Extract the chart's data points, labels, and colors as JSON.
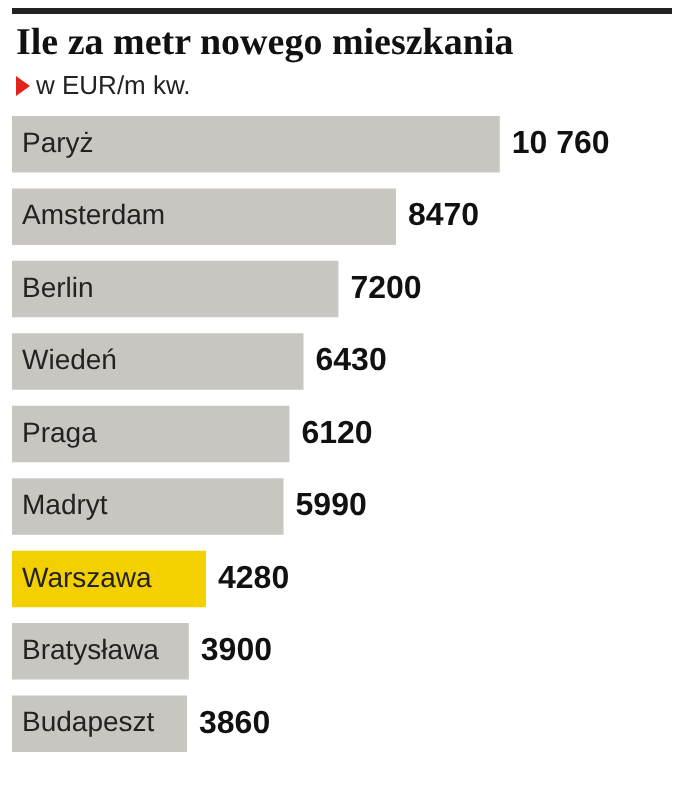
{
  "chart_data": {
    "type": "bar",
    "orientation": "horizontal",
    "title": "Ile za metr nowego mieszkania",
    "subtitle": "w EUR/m kw.",
    "categories": [
      "Paryż",
      "Amsterdam",
      "Berlin",
      "Wiedeń",
      "Praga",
      "Madryt",
      "Warszawa",
      "Bratysława",
      "Budapeszt"
    ],
    "values": [
      10760,
      8470,
      7200,
      6430,
      6120,
      5990,
      4280,
      3900,
      3860
    ],
    "colors": [
      "#c9c6c1",
      "#c9c6c1",
      "#c9c6c1",
      "#c9c6c1",
      "#c9c6c1",
      "#c9c6c1",
      "#f5d000",
      "#c9c6c1",
      "#c9c6c1"
    ],
    "value_labels": [
      "10 760",
      "8470",
      "7200",
      "6430",
      "6120",
      "5990",
      "4280",
      "3900",
      "3860"
    ],
    "tick_labels": false
  }
}
